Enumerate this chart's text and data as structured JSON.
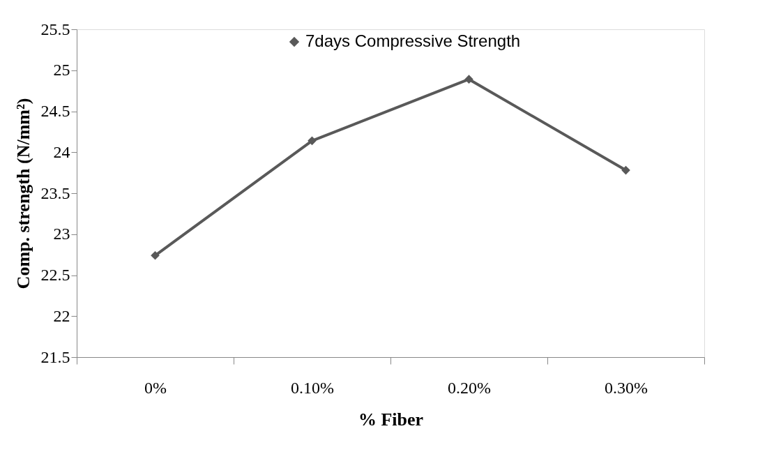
{
  "chart_data": {
    "type": "line",
    "xlabel": "% Fiber",
    "ylabel": "Comp. strength (N/mm²)",
    "categories": [
      "0%",
      "0.10%",
      "0.20%",
      "0.30%"
    ],
    "series": [
      {
        "name": "7days Compressive Strength",
        "color": "#595959",
        "values": [
          22.74,
          24.14,
          24.89,
          23.78
        ]
      }
    ],
    "ylim": [
      21.5,
      25.5
    ],
    "yticks": [
      21.5,
      22,
      22.5,
      23,
      23.5,
      24,
      24.5,
      25,
      25.5
    ],
    "grid": false,
    "legend": "top",
    "marker": "diamond",
    "line_style": "solid"
  }
}
